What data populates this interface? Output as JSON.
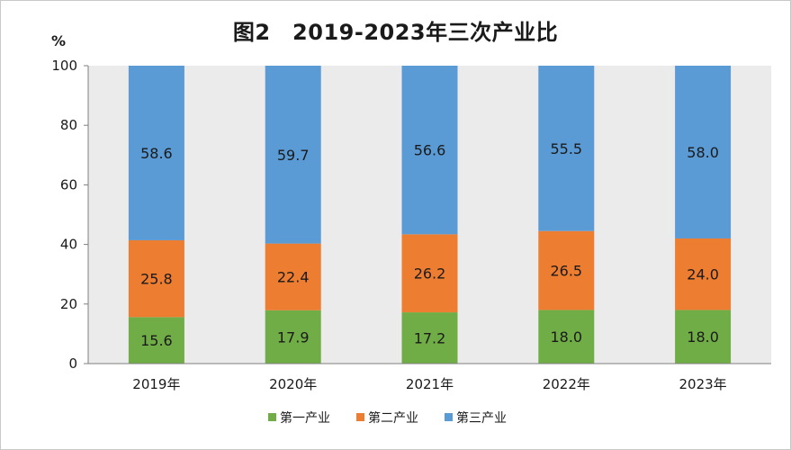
{
  "chart_data": {
    "type": "bar",
    "stacked": true,
    "title": "图2　2019-2023年三次产业比",
    "unit_label": "%",
    "categories": [
      "2019年",
      "2020年",
      "2021年",
      "2022年",
      "2023年"
    ],
    "series": [
      {
        "name": "第一产业",
        "values": [
          15.6,
          17.9,
          17.2,
          18.0,
          18.0
        ],
        "labels": [
          "15.6",
          "17.9",
          "17.2",
          "18.0",
          "18.0"
        ],
        "color": "#70ad47"
      },
      {
        "name": "第二产业",
        "values": [
          25.8,
          22.4,
          26.2,
          26.5,
          24.0
        ],
        "labels": [
          "25.8",
          "22.4",
          "26.2",
          "26.5",
          "24.0"
        ],
        "color": "#ed7d31"
      },
      {
        "name": "第三产业",
        "values": [
          58.6,
          59.7,
          56.6,
          55.5,
          58.0
        ],
        "labels": [
          "58.6",
          "59.7",
          "56.6",
          "55.5",
          "58.0"
        ],
        "color": "#5b9bd5"
      }
    ],
    "ylim": [
      0,
      100
    ],
    "yticks": [
      0,
      20,
      40,
      60,
      80,
      100
    ],
    "plot_background": "#ebebeb",
    "legend_position": "bottom"
  }
}
